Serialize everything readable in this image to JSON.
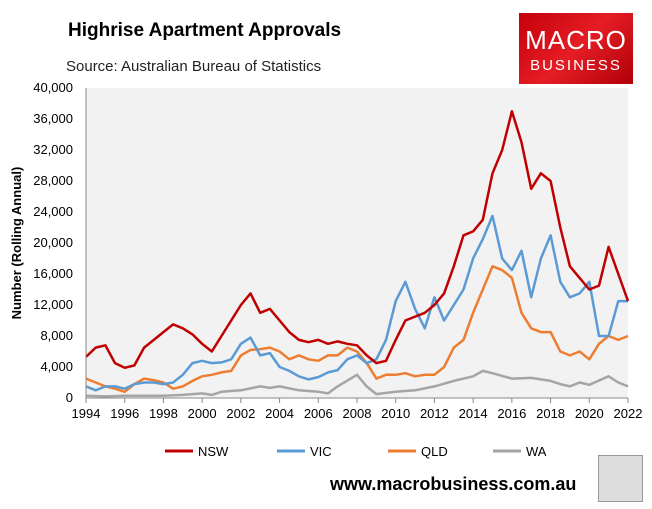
{
  "header": {
    "title": "Highrise Apartment Approvals",
    "subtitle": "Source: Australian Bureau of Statistics",
    "logo_line1": "MACRO",
    "logo_line2": "BUSINESS",
    "url": "www.macrobusiness.com.au"
  },
  "chart_data": {
    "type": "line",
    "title": "Highrise Apartment Approvals",
    "xlabel": "",
    "ylabel": "Number (Rolling Annual)",
    "xlim": [
      1994,
      2022
    ],
    "ylim": [
      0,
      40000
    ],
    "xticks": [
      "1994",
      "1996",
      "1998",
      "2000",
      "2002",
      "2004",
      "2006",
      "2008",
      "2010",
      "2012",
      "2014",
      "2016",
      "2018",
      "2020",
      "2022"
    ],
    "yticks": [
      "0",
      "4,000",
      "8,000",
      "12,000",
      "16,000",
      "20,000",
      "24,000",
      "28,000",
      "32,000",
      "36,000",
      "40,000"
    ],
    "grid": false,
    "legend": "bottom",
    "series": [
      {
        "name": "NSW",
        "color": "#c00000",
        "x": [
          1994,
          1994.5,
          1995,
          1995.5,
          1996,
          1996.5,
          1997,
          1997.5,
          1998,
          1998.5,
          1999,
          1999.5,
          2000,
          2000.5,
          2001,
          2001.5,
          2002,
          2002.5,
          2003,
          2003.5,
          2004,
          2004.5,
          2005,
          2005.5,
          2006,
          2006.5,
          2007,
          2007.5,
          2008,
          2008.5,
          2009,
          2009.5,
          2010,
          2010.5,
          2011,
          2011.5,
          2012,
          2012.5,
          2013,
          2013.5,
          2014,
          2014.5,
          2015,
          2015.5,
          2016,
          2016.5,
          2017,
          2017.5,
          2018,
          2018.5,
          2019,
          2019.5,
          2020,
          2020.5,
          2021,
          2021.5,
          2022
        ],
        "y": [
          5300,
          6500,
          6800,
          4500,
          3900,
          4200,
          6500,
          7500,
          8500,
          9500,
          9000,
          8200,
          7000,
          6000,
          8000,
          10000,
          12000,
          13500,
          11000,
          11500,
          10000,
          8500,
          7500,
          7200,
          7500,
          7000,
          7300,
          7000,
          6800,
          5500,
          4500,
          4800,
          7500,
          10000,
          10500,
          11000,
          12000,
          13500,
          17000,
          21000,
          21500,
          23000,
          29000,
          32000,
          37000,
          33000,
          27000,
          29000,
          28000,
          22000,
          17000,
          15500,
          14000,
          14500,
          19500,
          16000,
          12500
        ]
      },
      {
        "name": "VIC",
        "color": "#5b9bd5",
        "x": [
          1994,
          1994.5,
          1995,
          1995.5,
          1996,
          1996.5,
          1997,
          1997.5,
          1998,
          1998.5,
          1999,
          1999.5,
          2000,
          2000.5,
          2001,
          2001.5,
          2002,
          2002.5,
          2003,
          2003.5,
          2004,
          2004.5,
          2005,
          2005.5,
          2006,
          2006.5,
          2007,
          2007.5,
          2008,
          2008.5,
          2009,
          2009.5,
          2010,
          2010.5,
          2011,
          2011.5,
          2012,
          2012.5,
          2013,
          2013.5,
          2014,
          2014.5,
          2015,
          2015.5,
          2016,
          2016.5,
          2017,
          2017.5,
          2018,
          2018.5,
          2019,
          2019.5,
          2020,
          2020.5,
          2021,
          2021.5,
          2022
        ],
        "y": [
          1500,
          1000,
          1500,
          1500,
          1200,
          1800,
          2000,
          2000,
          1800,
          2000,
          3000,
          4500,
          4800,
          4500,
          4600,
          5000,
          7000,
          7800,
          5500,
          5800,
          4000,
          3500,
          2800,
          2400,
          2700,
          3300,
          3600,
          5000,
          5500,
          4500,
          5000,
          7500,
          12500,
          15000,
          11500,
          9000,
          13000,
          10000,
          12000,
          14000,
          18000,
          20500,
          23500,
          18000,
          16500,
          19000,
          13000,
          18000,
          21000,
          15000,
          13000,
          13500,
          15000,
          8000,
          8000,
          12500,
          12500
        ]
      },
      {
        "name": "QLD",
        "color": "#ed7d31",
        "x": [
          1994,
          1994.5,
          1995,
          1995.5,
          1996,
          1996.5,
          1997,
          1997.5,
          1998,
          1998.5,
          1999,
          1999.5,
          2000,
          2000.5,
          2001,
          2001.5,
          2002,
          2002.5,
          2003,
          2003.5,
          2004,
          2004.5,
          2005,
          2005.5,
          2006,
          2006.5,
          2007,
          2007.5,
          2008,
          2008.5,
          2009,
          2009.5,
          2010,
          2010.5,
          2011,
          2011.5,
          2012,
          2012.5,
          2013,
          2013.5,
          2014,
          2014.5,
          2015,
          2015.5,
          2016,
          2016.5,
          2017,
          2017.5,
          2018,
          2018.5,
          2019,
          2019.5,
          2020,
          2020.5,
          2021,
          2021.5,
          2022
        ],
        "y": [
          2500,
          2000,
          1500,
          1200,
          800,
          1800,
          2500,
          2300,
          2000,
          1200,
          1500,
          2200,
          2800,
          3000,
          3300,
          3500,
          5500,
          6200,
          6300,
          6500,
          6000,
          5000,
          5500,
          5000,
          4800,
          5500,
          5500,
          6500,
          6000,
          4500,
          2500,
          3000,
          3000,
          3200,
          2800,
          3000,
          3000,
          4000,
          6500,
          7500,
          11000,
          14000,
          17000,
          16500,
          15500,
          11000,
          9000,
          8500,
          8500,
          6000,
          5500,
          6000,
          5000,
          7000,
          8000,
          7500,
          8000
        ]
      },
      {
        "name": "WA",
        "color": "#a5a5a5",
        "x": [
          1994,
          1995,
          1996,
          1997,
          1998,
          1999,
          2000,
          2000.5,
          2001,
          2002,
          2003,
          2003.5,
          2004,
          2005,
          2006,
          2006.5,
          2007,
          2008,
          2008.5,
          2009,
          2010,
          2011,
          2012,
          2013,
          2014,
          2014.5,
          2015,
          2016,
          2017,
          2018,
          2018.5,
          2019,
          2019.5,
          2020,
          2021,
          2021.5,
          2022
        ],
        "y": [
          300,
          200,
          300,
          300,
          300,
          400,
          600,
          400,
          800,
          1000,
          1500,
          1300,
          1500,
          1000,
          800,
          600,
          1500,
          3000,
          1500,
          500,
          800,
          1000,
          1500,
          2200,
          2800,
          3500,
          3200,
          2500,
          2600,
          2200,
          1800,
          1500,
          2000,
          1700,
          2800,
          2000,
          1500
        ]
      }
    ]
  }
}
